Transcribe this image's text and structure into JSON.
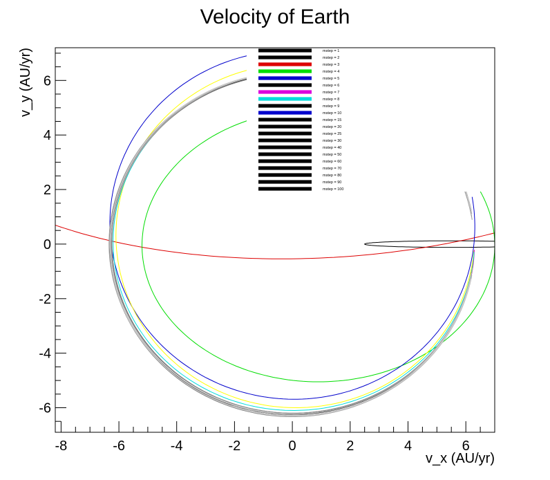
{
  "chart_data": {
    "type": "line",
    "title": "Velocity of Earth",
    "xlabel": "v_x (AU/yr)",
    "ylabel": "v_y (AU/yr)",
    "xlim": [
      -8.2,
      7.0
    ],
    "ylim": [
      -6.9,
      7.2
    ],
    "x_ticks": [
      -8,
      -6,
      -4,
      -2,
      0,
      2,
      4,
      6
    ],
    "y_ticks": [
      -6,
      -4,
      -2,
      0,
      2,
      4,
      6
    ],
    "grid": false,
    "legend_position": "top-center",
    "series": [
      {
        "name": "mstep = 1",
        "color": "#000000",
        "legend_color": "#000000",
        "shape": {
          "cx": 5.5,
          "cy": 0.0,
          "rx": 3.0,
          "ry": 0.12,
          "ang": 0.0,
          "a0": 0,
          "a1": 6.2832
        }
      },
      {
        "name": "mstep = 2",
        "color": "#000000",
        "legend_color": "#000000",
        "shape": null
      },
      {
        "name": "mstep = 3",
        "color": "#dd0000",
        "legend_color": "#dd0000",
        "shape": {
          "cx": 1.0,
          "cy": 6.1,
          "rx": 14.0,
          "ry": 6.6,
          "ang": 0.06,
          "a0": 2.6,
          "a1": 5.2
        }
      },
      {
        "name": "mstep = 4",
        "color": "#00dd00",
        "legend_color": "#00dd00",
        "shape": {
          "cx": 0.9,
          "cy": -0.05,
          "rx": 6.1,
          "ry": 5.0,
          "ang": 0.0,
          "a0": -0.05,
          "a1": 6.26
        }
      },
      {
        "name": "mstep = 5",
        "color": "#0000cc",
        "legend_color": "#0000cc",
        "shape": {
          "cx": 0.0,
          "cy": 0.7,
          "rx": 6.3,
          "ry": 6.4,
          "ang": 0.35,
          "a0": 0.3,
          "a1": 6.1
        }
      },
      {
        "name": "mstep = 6",
        "color": "#ffff00",
        "legend_color": "#000000",
        "shape": {
          "cx": 0.1,
          "cy": 0.3,
          "rx": 6.2,
          "ry": 6.3,
          "ang": 0.1,
          "a0": 0.2,
          "a1": 6.1
        }
      },
      {
        "name": "mstep = 7",
        "color": "#dd00dd",
        "legend_color": "#dd00dd",
        "shape": {
          "cx": 0.0,
          "cy": 0.0,
          "rx": 6.3,
          "ry": 6.3,
          "ang": 0.2,
          "a0": 0.25,
          "a1": 6.05
        }
      },
      {
        "name": "mstep = 8",
        "color": "#00dddd",
        "legend_color": "#00dddd",
        "shape": {
          "cx": 0.05,
          "cy": 0.1,
          "rx": 6.25,
          "ry": 6.2,
          "ang": 0.12,
          "a0": 0.2,
          "a1": 6.1
        }
      },
      {
        "name": "mstep = 9",
        "color": "#000000",
        "legend_color": "#000000",
        "shape": {
          "cx": 0.0,
          "cy": 0.0,
          "rx": 6.3,
          "ry": 6.25,
          "ang": 0.0,
          "a0": 0.2,
          "a1": 6.1
        }
      },
      {
        "name": "mstep = 10",
        "color": "#0000cc",
        "legend_color": "#0000cc",
        "shape": null
      },
      {
        "name": "mstep = 15",
        "color": "#666666",
        "legend_color": "#000000",
        "shape": {
          "cx": 0.02,
          "cy": 0.02,
          "rx": 6.28,
          "ry": 6.22,
          "ang": 0.05,
          "a0": 0.22,
          "a1": 6.08
        }
      },
      {
        "name": "mstep = 20",
        "color": "#555555",
        "legend_color": "#000000",
        "shape": {
          "cx": -0.02,
          "cy": 0.0,
          "rx": 6.3,
          "ry": 6.3,
          "ang": 0.02,
          "a0": 0.2,
          "a1": 6.1
        }
      },
      {
        "name": "mstep = 25",
        "color": "#777777",
        "legend_color": "#000000",
        "shape": {
          "cx": 0.0,
          "cy": -0.05,
          "rx": 6.29,
          "ry": 6.28,
          "ang": -0.03,
          "a0": 0.2,
          "a1": 6.1
        }
      },
      {
        "name": "mstep = 30",
        "color": "#888888",
        "legend_color": "#000000",
        "shape": {
          "cx": 0.03,
          "cy": 0.04,
          "rx": 6.27,
          "ry": 6.24,
          "ang": 0.08,
          "a0": 0.2,
          "a1": 6.1
        }
      },
      {
        "name": "mstep = 40",
        "color": "#999999",
        "legend_color": "#000000",
        "shape": {
          "cx": -0.03,
          "cy": 0.02,
          "rx": 6.31,
          "ry": 6.26,
          "ang": -0.06,
          "a0": 0.2,
          "a1": 6.1
        }
      },
      {
        "name": "mstep = 50",
        "color": "#444444",
        "legend_color": "#000000",
        "shape": {
          "cx": 0.01,
          "cy": 0.0,
          "rx": 6.3,
          "ry": 6.29,
          "ang": 0.0,
          "a0": 0.2,
          "a1": 6.1
        }
      },
      {
        "name": "mstep = 60",
        "color": "#aaaaaa",
        "legend_color": "#000000",
        "shape": {
          "cx": 0.0,
          "cy": 0.03,
          "rx": 6.3,
          "ry": 6.27,
          "ang": 0.04,
          "a0": 0.2,
          "a1": 6.1
        }
      },
      {
        "name": "mstep = 70",
        "color": "#bbbbbb",
        "legend_color": "#000000",
        "shape": {
          "cx": 0.02,
          "cy": -0.02,
          "rx": 6.29,
          "ry": 6.3,
          "ang": -0.02,
          "a0": 0.2,
          "a1": 6.1
        }
      },
      {
        "name": "mstep = 80",
        "color": "#cccccc",
        "legend_color": "#000000",
        "shape": {
          "cx": -0.01,
          "cy": 0.01,
          "rx": 6.3,
          "ry": 6.3,
          "ang": 0.01,
          "a0": 0.2,
          "a1": 6.1
        }
      },
      {
        "name": "mstep = 90",
        "color": "#b0b0b0",
        "legend_color": "#000000",
        "shape": {
          "cx": 0.0,
          "cy": 0.0,
          "rx": 6.3,
          "ry": 6.3,
          "ang": 0.0,
          "a0": 0.2,
          "a1": 6.1
        }
      },
      {
        "name": "mstep = 100",
        "color": "#d0d0d0",
        "legend_color": "#000000",
        "shape": {
          "cx": 0.0,
          "cy": 0.0,
          "rx": 6.3,
          "ry": 6.3,
          "ang": 0.0,
          "a0": 0.2,
          "a1": 6.1
        }
      }
    ]
  }
}
